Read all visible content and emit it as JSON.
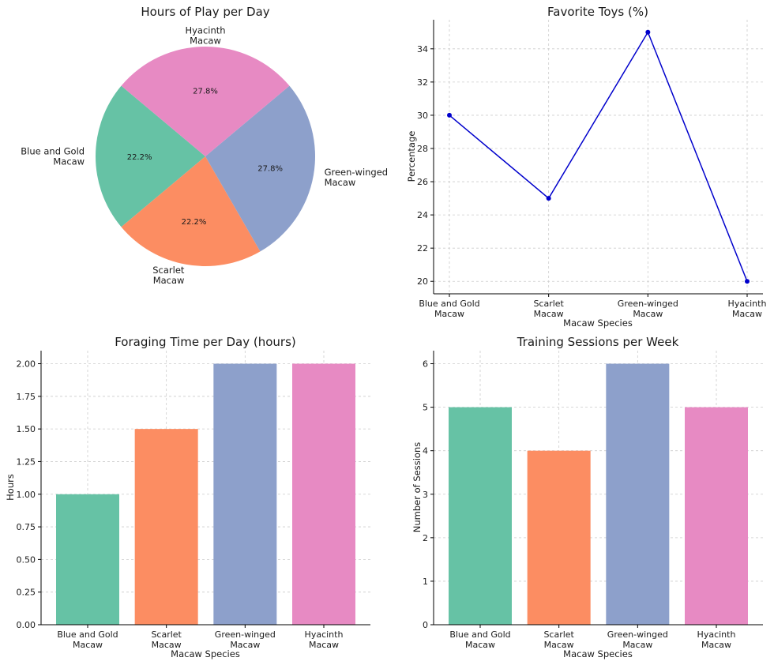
{
  "chart_data": [
    {
      "type": "pie",
      "title": "Hours of Play per Day",
      "labels": [
        "Blue and Gold\nMacaw",
        "Scarlet\nMacaw",
        "Green-winged\nMacaw",
        "Hyacinth\nMacaw"
      ],
      "values": [
        2,
        2,
        2.5,
        2.5
      ],
      "percent_labels": [
        "22.2%",
        "22.2%",
        "27.8%",
        "27.8%"
      ],
      "colors": [
        "#66c2a5",
        "#fc8d62",
        "#8da0cb",
        "#e78ac3"
      ],
      "start_angle": 140
    },
    {
      "type": "line",
      "title": "Favorite Toys (%)",
      "categories": [
        "Blue and Gold\nMacaw",
        "Scarlet\nMacaw",
        "Green-winged\nMacaw",
        "Hyacinth\nMacaw"
      ],
      "values": [
        30,
        25,
        35,
        20
      ],
      "xlabel": "Macaw Species",
      "ylabel": "Percentage",
      "ylim": [
        19.25,
        35.75
      ],
      "yticks": [
        "20",
        "22",
        "24",
        "26",
        "28",
        "30",
        "32",
        "34"
      ],
      "ytick_values": [
        20,
        22,
        24,
        26,
        28,
        30,
        32,
        34
      ],
      "color": "#0000cc",
      "grid": true
    },
    {
      "type": "bar",
      "title": "Foraging Time per Day (hours)",
      "categories": [
        "Blue and Gold\nMacaw",
        "Scarlet\nMacaw",
        "Green-winged\nMacaw",
        "Hyacinth\nMacaw"
      ],
      "values": [
        1.0,
        1.5,
        2.0,
        2.0
      ],
      "xlabel": "Macaw Species",
      "ylabel": "Hours",
      "ylim": [
        0,
        2.1
      ],
      "yticks": [
        "0.00",
        "0.25",
        "0.50",
        "0.75",
        "1.00",
        "1.25",
        "1.50",
        "1.75",
        "2.00"
      ],
      "ytick_values": [
        0,
        0.25,
        0.5,
        0.75,
        1.0,
        1.25,
        1.5,
        1.75,
        2.0
      ],
      "colors": [
        "#66c2a5",
        "#fc8d62",
        "#8da0cb",
        "#e78ac3"
      ],
      "grid": true
    },
    {
      "type": "bar",
      "title": "Training Sessions per Week",
      "categories": [
        "Blue and Gold\nMacaw",
        "Scarlet\nMacaw",
        "Green-winged\nMacaw",
        "Hyacinth\nMacaw"
      ],
      "values": [
        5,
        4,
        6,
        5
      ],
      "xlabel": "Macaw Species",
      "ylabel": "Number of Sessions",
      "ylim": [
        0,
        6.3
      ],
      "yticks": [
        "0",
        "1",
        "2",
        "3",
        "4",
        "5",
        "6"
      ],
      "ytick_values": [
        0,
        1,
        2,
        3,
        4,
        5,
        6
      ],
      "colors": [
        "#66c2a5",
        "#fc8d62",
        "#8da0cb",
        "#e78ac3"
      ],
      "grid": true
    }
  ]
}
